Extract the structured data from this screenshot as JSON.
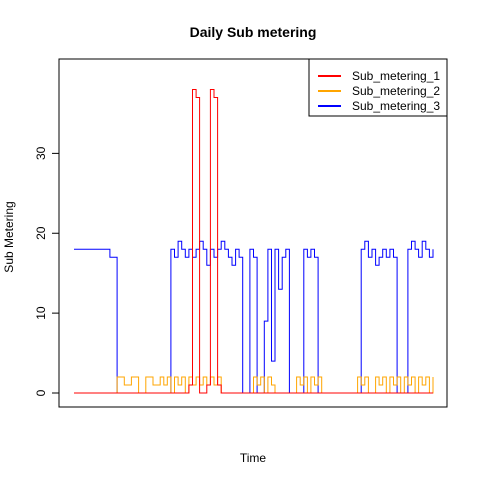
{
  "chart_data": {
    "type": "line",
    "title": "Daily Sub metering",
    "xlabel": "Time",
    "ylabel": "Sub Metering",
    "ylim": [
      0,
      40
    ],
    "yticks": [
      0,
      10,
      20,
      30
    ],
    "x_ticks_shown": false,
    "legend_position": "top-right",
    "grid": false,
    "x": [
      0,
      10,
      12,
      14,
      16,
      18,
      20,
      22,
      24,
      25,
      26,
      27,
      28,
      29,
      30,
      31,
      32,
      33,
      34,
      35,
      36,
      37,
      38,
      39,
      40,
      41,
      42,
      43,
      44,
      45,
      46,
      47,
      48,
      49,
      50,
      51,
      52,
      53,
      54,
      55,
      56,
      57,
      58,
      59,
      60,
      61,
      62,
      63,
      64,
      65,
      66,
      67,
      68,
      69,
      70,
      71,
      72,
      73,
      74,
      75,
      76,
      77,
      78,
      79,
      80,
      81,
      82,
      83,
      84,
      85,
      86,
      87,
      88,
      89,
      90,
      91,
      92,
      93,
      94,
      95,
      96,
      97,
      98,
      99,
      100
    ],
    "series": [
      {
        "name": "Sub_metering_1",
        "color": "#ff0000",
        "values": [
          0,
          0,
          0,
          0,
          0,
          0,
          0,
          0,
          0,
          0,
          0,
          0,
          0,
          0,
          0,
          0,
          1,
          38,
          37,
          0,
          0,
          1,
          38,
          37,
          1,
          0,
          0,
          0,
          0,
          0,
          0,
          0,
          0,
          0,
          0,
          0,
          0,
          0,
          0,
          0,
          0,
          0,
          0,
          0,
          0,
          0,
          0,
          0,
          0,
          0,
          0,
          0,
          0,
          0,
          0,
          0,
          0,
          0,
          0,
          0,
          0,
          0,
          0,
          0,
          0,
          0,
          0,
          0,
          0,
          0,
          0,
          0,
          0,
          0,
          0,
          0,
          0,
          0,
          0,
          0,
          0,
          0,
          0,
          0,
          0
        ]
      },
      {
        "name": "Sub_metering_2",
        "color": "#ffa500",
        "values": [
          0,
          0,
          2,
          1,
          2,
          0,
          2,
          1,
          2,
          1,
          2,
          0,
          2,
          1,
          2,
          0,
          2,
          1,
          2,
          1,
          2,
          1,
          2,
          1,
          2,
          0,
          0,
          0,
          0,
          0,
          0,
          0,
          0,
          0,
          2,
          1,
          2,
          0,
          2,
          1,
          0,
          0,
          0,
          0,
          0,
          0,
          2,
          1,
          2,
          0,
          2,
          1,
          2,
          0,
          0,
          0,
          0,
          0,
          0,
          0,
          0,
          0,
          0,
          2,
          1,
          2,
          0,
          0,
          2,
          1,
          2,
          0,
          2,
          1,
          2,
          0,
          2,
          1,
          2,
          0,
          2,
          1,
          2,
          0,
          2
        ]
      },
      {
        "name": "Sub_metering_3",
        "color": "#0000ff",
        "values": [
          18,
          17,
          0,
          0,
          0,
          0,
          0,
          0,
          0,
          0,
          0,
          18,
          17,
          19,
          18,
          17,
          18,
          17,
          18,
          19,
          18,
          16,
          18,
          17,
          18,
          19,
          18,
          17,
          16,
          18,
          17,
          0,
          0,
          18,
          17,
          0,
          0,
          9,
          18,
          4,
          18,
          13,
          17,
          18,
          0,
          0,
          0,
          0,
          18,
          17,
          18,
          17,
          0,
          0,
          0,
          0,
          0,
          0,
          0,
          0,
          0,
          0,
          0,
          0,
          18,
          19,
          17,
          18,
          16,
          17,
          18,
          17,
          18,
          17,
          0,
          0,
          0,
          18,
          19,
          18,
          17,
          19,
          18,
          17,
          18
        ]
      }
    ]
  }
}
